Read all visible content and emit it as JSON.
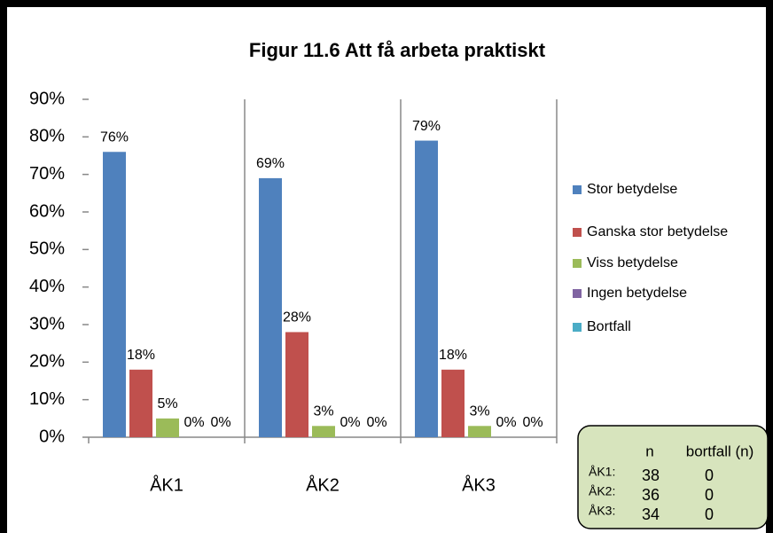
{
  "chart_data": {
    "type": "bar",
    "title": "Figur 11.6 Att få arbeta praktiskt",
    "categories": [
      "ÅK1",
      "ÅK2",
      "ÅK3"
    ],
    "series": [
      {
        "name": "Stor betydelse",
        "color": "#4f81bd",
        "values": [
          76,
          69,
          79
        ],
        "value_labels": [
          "76%",
          "69%",
          "79%"
        ]
      },
      {
        "name": "Ganska stor betydelse",
        "color": "#c0504d",
        "values": [
          18,
          28,
          18
        ],
        "value_labels": [
          "18%",
          "28%",
          "18%"
        ]
      },
      {
        "name": "Viss betydelse",
        "color": "#9bbb59",
        "values": [
          5,
          3,
          3
        ],
        "value_labels": [
          "5%",
          "3%",
          "3%"
        ]
      },
      {
        "name": "Ingen betydelse",
        "color": "#8064a2",
        "values": [
          0,
          0,
          0
        ],
        "value_labels": [
          "0%",
          "0%",
          "0%"
        ]
      },
      {
        "name": "Bortfall",
        "color": "#4bacc6",
        "values": [
          0,
          0,
          0
        ],
        "value_labels": [
          "0%",
          "0%",
          "0%"
        ]
      }
    ],
    "ylim": [
      0,
      90
    ],
    "yticks": [
      {
        "value": 0,
        "label": "0%"
      },
      {
        "value": 10,
        "label": "10%"
      },
      {
        "value": 20,
        "label": "20%"
      },
      {
        "value": 30,
        "label": "30%"
      },
      {
        "value": 40,
        "label": "40%"
      },
      {
        "value": 50,
        "label": "50%"
      },
      {
        "value": 60,
        "label": "60%"
      },
      {
        "value": 70,
        "label": "70%"
      },
      {
        "value": 80,
        "label": "80%"
      },
      {
        "value": 90,
        "label": "90%"
      }
    ],
    "legend": "right",
    "n_table": {
      "header": [
        "n",
        "bortfall (n)"
      ],
      "rows": [
        {
          "label": "ÅK1:",
          "n": 38,
          "bortfall": 0
        },
        {
          "label": "ÅK2:",
          "n": 36,
          "bortfall": 0
        },
        {
          "label": "ÅK3:",
          "n": 34,
          "bortfall": 0
        }
      ]
    }
  }
}
